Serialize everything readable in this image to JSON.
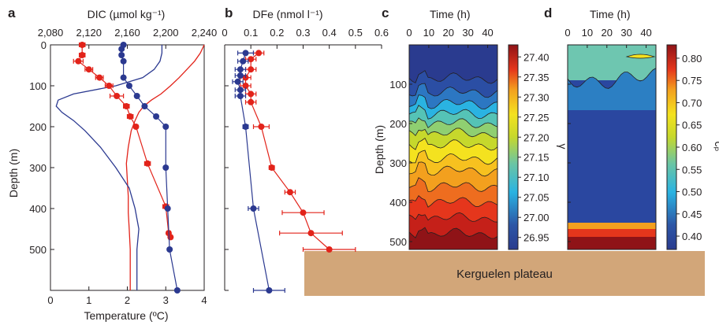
{
  "panel_labels": {
    "a": "a",
    "b": "b",
    "c": "c",
    "d": "d"
  },
  "plateau_label": "Kerguelen plateau",
  "colors": {
    "red": "#e2231a",
    "blue": "#2b3990",
    "plateau": "#d2a679"
  },
  "chart_data": [
    {
      "panel": "a",
      "type": "line",
      "top_axis_label": "DIC (µmol kg⁻¹)",
      "top_ticks": [
        "2,080",
        "2,120",
        "2,160",
        "2,200",
        "2,240"
      ],
      "top_range": [
        2080,
        2240
      ],
      "xlabel": "Temperature (ºC)",
      "x_ticks": [
        "0",
        "1",
        "2",
        "3",
        "4"
      ],
      "x_range": [
        0,
        4
      ],
      "ylabel": "Depth (m)",
      "y_ticks": [
        "0",
        "100",
        "200",
        "300",
        "400",
        "500"
      ],
      "y_range": [
        0,
        600
      ],
      "series": [
        {
          "color": "red",
          "kind": "points-dic",
          "points": [
            [
              0,
              2113,
              3
            ],
            [
              25,
              2113,
              3
            ],
            [
              40,
              2109,
              5
            ],
            [
              60,
              2120,
              4
            ],
            [
              80,
              2131,
              4
            ],
            [
              100,
              2141,
              4
            ],
            [
              125,
              2149,
              7
            ],
            [
              150,
              2159,
              3
            ],
            [
              175,
              2163,
              3
            ],
            [
              200,
              2169,
              2
            ],
            [
              290,
              2181,
              3
            ],
            [
              395,
              2200,
              3
            ],
            [
              460,
              2203,
              2
            ],
            [
              470,
              2205,
              2
            ]
          ]
        },
        {
          "color": "blue",
          "kind": "points-temp",
          "points": [
            [
              0,
              1.9
            ],
            [
              10,
              1.85
            ],
            [
              25,
              1.85
            ],
            [
              40,
              1.9
            ],
            [
              80,
              1.9
            ],
            [
              100,
              2.05
            ],
            [
              125,
              2.25
            ],
            [
              150,
              2.45
            ],
            [
              175,
              2.75
            ],
            [
              200,
              3.0
            ],
            [
              300,
              3.0
            ],
            [
              400,
              3.05
            ],
            [
              500,
              3.1
            ],
            [
              600,
              3.3
            ]
          ]
        },
        {
          "color": "red",
          "kind": "profile-dic",
          "points": [
            [
              0,
              2240
            ],
            [
              20,
              2236
            ],
            [
              40,
              2230
            ],
            [
              60,
              2222
            ],
            [
              80,
              2214
            ],
            [
              100,
              2205
            ],
            [
              120,
              2195
            ],
            [
              135,
              2185
            ],
            [
              150,
              2177
            ],
            [
              165,
              2172
            ],
            [
              185,
              2168
            ],
            [
              210,
              2164
            ],
            [
              250,
              2161
            ],
            [
              290,
              2159
            ],
            [
              330,
              2160
            ],
            [
              370,
              2161
            ],
            [
              410,
              2161
            ],
            [
              450,
              2162
            ],
            [
              500,
              2163
            ],
            [
              550,
              2163
            ],
            [
              600,
              2163
            ]
          ]
        },
        {
          "color": "blue",
          "kind": "profile-temp",
          "points": [
            [
              0,
              2.9
            ],
            [
              20,
              2.9
            ],
            [
              40,
              2.85
            ],
            [
              60,
              2.7
            ],
            [
              80,
              2.4
            ],
            [
              100,
              1.7
            ],
            [
              120,
              0.6
            ],
            [
              135,
              0.2
            ],
            [
              150,
              0.15
            ],
            [
              165,
              0.3
            ],
            [
              185,
              0.6
            ],
            [
              210,
              0.9
            ],
            [
              250,
              1.3
            ],
            [
              300,
              1.7
            ],
            [
              350,
              2.05
            ],
            [
              400,
              2.2
            ],
            [
              450,
              2.3
            ],
            [
              500,
              2.25
            ],
            [
              550,
              2.25
            ],
            [
              600,
              2.25
            ]
          ]
        }
      ]
    },
    {
      "panel": "b",
      "type": "line",
      "top_axis_label": "DFe (nmol l⁻¹)",
      "top_ticks": [
        "0",
        "0.1",
        "0.2",
        "0.3",
        "0.4",
        "0.5",
        "0.6"
      ],
      "top_range": [
        0,
        0.6
      ],
      "y_range": [
        0,
        600
      ],
      "series": [
        {
          "color": "red",
          "points": [
            [
              20,
              0.13,
              0.02
            ],
            [
              35,
              0.1,
              0.02
            ],
            [
              60,
              0.1,
              0.02
            ],
            [
              80,
              0.08,
              0.02
            ],
            [
              100,
              0.08,
              0.02
            ],
            [
              120,
              0.1,
              0.02
            ],
            [
              140,
              0.1,
              0.02
            ],
            [
              200,
              0.14,
              0.03
            ],
            [
              300,
              0.18,
              0.01
            ],
            [
              360,
              0.25,
              0.02
            ],
            [
              410,
              0.3,
              0.08
            ],
            [
              460,
              0.33,
              0.12
            ],
            [
              500,
              0.4,
              0.1
            ]
          ]
        },
        {
          "color": "blue",
          "points": [
            [
              20,
              0.08,
              0.03
            ],
            [
              40,
              0.07,
              0.02
            ],
            [
              60,
              0.06,
              0.02
            ],
            [
              75,
              0.06,
              0.02
            ],
            [
              90,
              0.05,
              0.02
            ],
            [
              110,
              0.06,
              0.02
            ],
            [
              125,
              0.06,
              0.02
            ],
            [
              200,
              0.08,
              0.01
            ],
            [
              400,
              0.11,
              0.02
            ],
            [
              600,
              0.17,
              0.06
            ]
          ]
        }
      ]
    },
    {
      "panel": "c",
      "type": "heatmap",
      "top_axis_label": "Time (h)",
      "x_ticks": [
        "0",
        "10",
        "20",
        "30",
        "40"
      ],
      "x_range": [
        0,
        45
      ],
      "ylabel": "Depth (m)",
      "y_ticks": [
        "100",
        "200",
        "300",
        "400",
        "500"
      ],
      "y_range": [
        0,
        520
      ],
      "colorbar_label": "γ",
      "colorbar_ticks": [
        "27.40",
        "27.35",
        "27.30",
        "27.25",
        "27.20",
        "27.15",
        "27.10",
        "27.05",
        "27.00",
        "26.95"
      ],
      "colorbar_range": [
        26.92,
        27.43
      ]
    },
    {
      "panel": "d",
      "type": "heatmap",
      "top_axis_label": "Time (h)",
      "x_ticks": [
        "0",
        "10",
        "20",
        "30",
        "40"
      ],
      "x_range": [
        0,
        45
      ],
      "y_range": [
        0,
        520
      ],
      "colorbar_label": "cₚ",
      "colorbar_ticks": [
        "0.80",
        "0.75",
        "0.70",
        "0.65",
        "0.60",
        "0.55",
        "0.50",
        "0.45",
        "0.40"
      ],
      "colorbar_range": [
        0.37,
        0.83
      ]
    }
  ]
}
